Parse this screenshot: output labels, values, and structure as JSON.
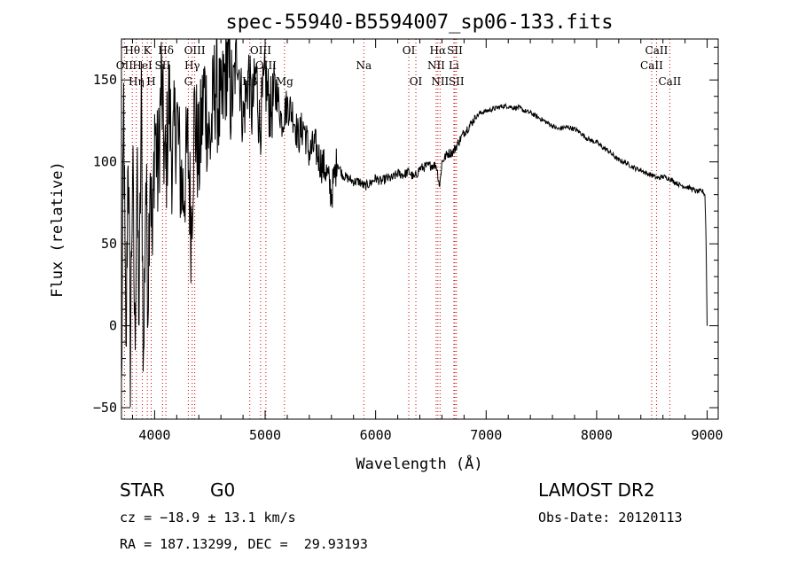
{
  "chart_data": {
    "type": "line",
    "title": "spec-55940-B5594007_sp06-133.fits",
    "xlabel": "Wavelength (Å)",
    "ylabel": "Flux (relative)",
    "xlim": [
      3700,
      9100
    ],
    "ylim": [
      -57,
      175
    ],
    "xticks": [
      4000,
      5000,
      6000,
      7000,
      8000,
      9000
    ],
    "yticks": [
      -50,
      0,
      50,
      100,
      150
    ],
    "grid": false,
    "line_color": "#000000",
    "marker_color": "#cc0000",
    "spectrum_anchors": [
      [
        3700,
        -45
      ],
      [
        3720,
        135
      ],
      [
        3740,
        -30
      ],
      [
        3760,
        118
      ],
      [
        3780,
        -20
      ],
      [
        3800,
        100
      ],
      [
        3820,
        -10
      ],
      [
        3840,
        90
      ],
      [
        3860,
        5
      ],
      [
        3880,
        135
      ],
      [
        3900,
        -30
      ],
      [
        3920,
        95
      ],
      [
        3940,
        20
      ],
      [
        3960,
        110
      ],
      [
        3980,
        40
      ],
      [
        4000,
        125
      ],
      [
        4030,
        90
      ],
      [
        4060,
        150
      ],
      [
        4080,
        115
      ],
      [
        4100,
        90
      ],
      [
        4130,
        140
      ],
      [
        4160,
        100
      ],
      [
        4200,
        130
      ],
      [
        4230,
        95
      ],
      [
        4260,
        80
      ],
      [
        4300,
        110
      ],
      [
        4330,
        60
      ],
      [
        4360,
        130
      ],
      [
        4400,
        100
      ],
      [
        4450,
        145
      ],
      [
        4500,
        110
      ],
      [
        4550,
        150
      ],
      [
        4600,
        125
      ],
      [
        4650,
        165
      ],
      [
        4700,
        135
      ],
      [
        4750,
        170
      ],
      [
        4800,
        125
      ],
      [
        4850,
        155
      ],
      [
        4880,
        130
      ],
      [
        4920,
        155
      ],
      [
        4950,
        120
      ],
      [
        5000,
        150
      ],
      [
        5050,
        130
      ],
      [
        5100,
        145
      ],
      [
        5150,
        125
      ],
      [
        5200,
        135
      ],
      [
        5250,
        130
      ],
      [
        5300,
        115
      ],
      [
        5350,
        122
      ],
      [
        5400,
        105
      ],
      [
        5450,
        110
      ],
      [
        5500,
        100
      ],
      [
        5550,
        95
      ],
      [
        5600,
        80
      ],
      [
        5650,
        100
      ],
      [
        5700,
        92
      ],
      [
        5750,
        90
      ],
      [
        5800,
        88
      ],
      [
        5850,
        88
      ],
      [
        5900,
        85
      ],
      [
        5950,
        87
      ],
      [
        6000,
        90
      ],
      [
        6050,
        88
      ],
      [
        6100,
        90
      ],
      [
        6150,
        90
      ],
      [
        6200,
        93
      ],
      [
        6250,
        92
      ],
      [
        6300,
        94
      ],
      [
        6350,
        90
      ],
      [
        6400,
        96
      ],
      [
        6450,
        97
      ],
      [
        6500,
        98
      ],
      [
        6550,
        98
      ],
      [
        6580,
        85
      ],
      [
        6600,
        100
      ],
      [
        6650,
        105
      ],
      [
        6700,
        106
      ],
      [
        6750,
        112
      ],
      [
        6800,
        118
      ],
      [
        6850,
        122
      ],
      [
        6900,
        127
      ],
      [
        6950,
        130
      ],
      [
        7000,
        131
      ],
      [
        7050,
        132
      ],
      [
        7100,
        133
      ],
      [
        7150,
        134
      ],
      [
        7200,
        134
      ],
      [
        7250,
        133
      ],
      [
        7300,
        133
      ],
      [
        7350,
        131
      ],
      [
        7400,
        130
      ],
      [
        7450,
        128
      ],
      [
        7500,
        126
      ],
      [
        7550,
        124
      ],
      [
        7600,
        122
      ],
      [
        7650,
        120
      ],
      [
        7700,
        121
      ],
      [
        7750,
        121
      ],
      [
        7800,
        120
      ],
      [
        7850,
        118
      ],
      [
        7900,
        115
      ],
      [
        7950,
        113
      ],
      [
        8000,
        112
      ],
      [
        8050,
        109
      ],
      [
        8100,
        107
      ],
      [
        8150,
        104
      ],
      [
        8200,
        101
      ],
      [
        8250,
        100
      ],
      [
        8300,
        98
      ],
      [
        8350,
        96
      ],
      [
        8400,
        95
      ],
      [
        8450,
        93
      ],
      [
        8500,
        92
      ],
      [
        8550,
        90
      ],
      [
        8600,
        91
      ],
      [
        8650,
        90
      ],
      [
        8700,
        88
      ],
      [
        8750,
        86
      ],
      [
        8800,
        85
      ],
      [
        8850,
        84
      ],
      [
        8900,
        82
      ],
      [
        8960,
        82
      ],
      [
        8980,
        80
      ],
      [
        8990,
        55
      ],
      [
        9000,
        0
      ]
    ],
    "noise": [
      {
        "from": 3700,
        "to": 4700,
        "amp": 38
      },
      {
        "from": 4700,
        "to": 5100,
        "amp": 22
      },
      {
        "from": 5100,
        "to": 5650,
        "amp": 12
      },
      {
        "from": 5650,
        "to": 6900,
        "amp": 3
      },
      {
        "from": 6900,
        "to": 9000,
        "amp": 1.5
      }
    ],
    "lines": [
      {
        "label": "Hθ",
        "wave": 3798,
        "row": 0
      },
      {
        "label": "K",
        "wave": 3934,
        "row": 0
      },
      {
        "label": "Hδ",
        "wave": 4102,
        "row": 0
      },
      {
        "label": "OIII",
        "wave": 4363,
        "row": 0
      },
      {
        "label": "OIII",
        "wave": 4959,
        "row": 0
      },
      {
        "label": "OI",
        "wave": 6300,
        "row": 0
      },
      {
        "label": "Hα",
        "wave": 6563,
        "row": 0
      },
      {
        "label": "SII",
        "wave": 6717,
        "row": 0
      },
      {
        "label": "CaII",
        "wave": 8542,
        "row": 0
      },
      {
        "label": "OII",
        "wave": 3727,
        "row": 1
      },
      {
        "label": "HeI",
        "wave": 3889,
        "row": 1
      },
      {
        "label": "SII",
        "wave": 4072,
        "row": 1
      },
      {
        "label": "Hγ",
        "wave": 4340,
        "row": 1
      },
      {
        "label": "OIII",
        "wave": 5007,
        "row": 1
      },
      {
        "label": "Na",
        "wave": 5893,
        "row": 1
      },
      {
        "label": "NII",
        "wave": 6548,
        "row": 1
      },
      {
        "label": "Li",
        "wave": 6708,
        "row": 1
      },
      {
        "label": "CaII",
        "wave": 8498,
        "row": 1
      },
      {
        "label": "Hη",
        "wave": 3835,
        "row": 2
      },
      {
        "label": "H",
        "wave": 3969,
        "row": 2
      },
      {
        "label": "G",
        "wave": 4305,
        "row": 2
      },
      {
        "label": "Hβ",
        "wave": 4861,
        "row": 2
      },
      {
        "label": "Mg",
        "wave": 5175,
        "row": 2
      },
      {
        "label": "OI",
        "wave": 6364,
        "row": 2
      },
      {
        "label": "NII",
        "wave": 6583,
        "row": 2
      },
      {
        "label": "SII",
        "wave": 6731,
        "row": 2
      },
      {
        "label": "CaII",
        "wave": 8662,
        "row": 2
      }
    ]
  },
  "info": {
    "object_class": "STAR",
    "subclass": "G0",
    "survey": "LAMOST DR2",
    "cz": "cz = −18.9 ± 13.1 km/s",
    "obs_date": "Obs-Date: 20120113",
    "coords": "RA = 187.13299, DEC =  29.93193"
  }
}
